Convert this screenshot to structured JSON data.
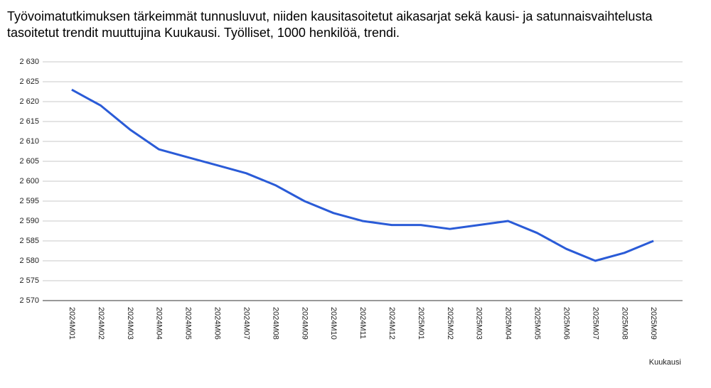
{
  "chart_data": {
    "type": "line",
    "title": "Työvoimatutkimuksen tärkeimmät tunnusluvut, niiden kausitasoitetut aikasarjat sekä kausi- ja satunnaisvaihtelusta tasoitetut trendit muuttujina Kuukausi. Työlliset, 1000 henkilöä, trendi.",
    "x_label": "Kuukausi",
    "categories": [
      "2024M01",
      "2024M02",
      "2024M03",
      "2024M04",
      "2024M05",
      "2024M06",
      "2024M07",
      "2024M08",
      "2024M09",
      "2024M10",
      "2024M11",
      "2024M12",
      "2025M01",
      "2025M02",
      "2025M03",
      "2025M04",
      "2025M05",
      "2025M06",
      "2025M07",
      "2025M08",
      "2025M09"
    ],
    "series": [
      {
        "name": "Työlliset, 1000 henkilöä, trendi",
        "color": "#2a5bd7",
        "values": [
          2623,
          2619,
          2613,
          2608,
          2606,
          2604,
          2602,
          2599,
          2595,
          2592,
          2590,
          2589,
          2589,
          2588,
          2589,
          2590,
          2587,
          2583,
          2580,
          2582,
          2585
        ]
      }
    ],
    "ylim": [
      2570,
      2630
    ],
    "yticks": [
      {
        "value": 2570,
        "label": "2 570"
      },
      {
        "value": 2575,
        "label": "2 575"
      },
      {
        "value": 2580,
        "label": "2 580"
      },
      {
        "value": 2585,
        "label": "2 585"
      },
      {
        "value": 2590,
        "label": "2 590"
      },
      {
        "value": 2595,
        "label": "2 595"
      },
      {
        "value": 2600,
        "label": "2 600"
      },
      {
        "value": 2605,
        "label": "2 605"
      },
      {
        "value": 2610,
        "label": "2 610"
      },
      {
        "value": 2615,
        "label": "2 615"
      },
      {
        "value": 2620,
        "label": "2 620"
      },
      {
        "value": 2625,
        "label": "2 625"
      },
      {
        "value": 2630,
        "label": "2 630"
      }
    ],
    "grid": true
  }
}
